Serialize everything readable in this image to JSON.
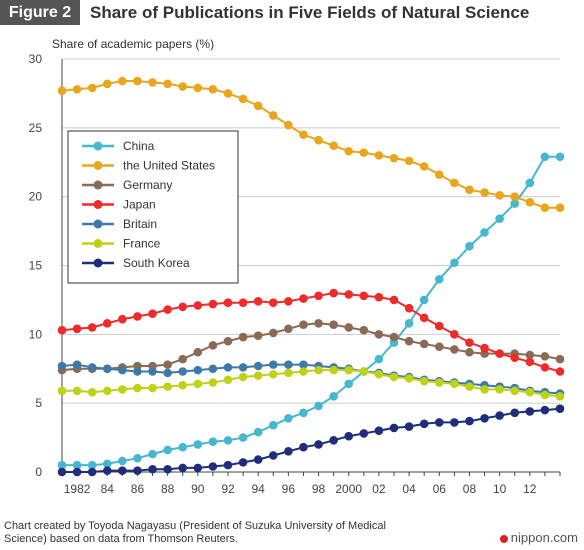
{
  "figure_label": "Figure 2",
  "chart_data": {
    "type": "line",
    "title": "Share of Publications in Five Fields of Natural Science",
    "ylabel": "Share of academic papers (%)",
    "xlabel": "",
    "xlim": [
      1981,
      2014
    ],
    "ylim": [
      0,
      30
    ],
    "y_ticks": [
      0,
      5,
      10,
      15,
      20,
      25,
      30
    ],
    "x_ticks": [
      {
        "x": 1982,
        "label": "1982"
      },
      {
        "x": 1984,
        "label": "84"
      },
      {
        "x": 1986,
        "label": "86"
      },
      {
        "x": 1988,
        "label": "88"
      },
      {
        "x": 1990,
        "label": "90"
      },
      {
        "x": 1992,
        "label": "92"
      },
      {
        "x": 1994,
        "label": "94"
      },
      {
        "x": 1996,
        "label": "96"
      },
      {
        "x": 1998,
        "label": "98"
      },
      {
        "x": 2000,
        "label": "2000"
      },
      {
        "x": 2002,
        "label": "02"
      },
      {
        "x": 2004,
        "label": "04"
      },
      {
        "x": 2006,
        "label": "06"
      },
      {
        "x": 2008,
        "label": "08"
      },
      {
        "x": 2010,
        "label": "10"
      },
      {
        "x": 2012,
        "label": "12"
      }
    ],
    "grid": "horizontal",
    "legend_position": "left",
    "x": [
      1981,
      1982,
      1983,
      1984,
      1985,
      1986,
      1987,
      1988,
      1989,
      1990,
      1991,
      1992,
      1993,
      1994,
      1995,
      1996,
      1997,
      1998,
      1999,
      2000,
      2001,
      2002,
      2003,
      2004,
      2005,
      2006,
      2007,
      2008,
      2009,
      2010,
      2011,
      2012,
      2013,
      2014
    ],
    "series": [
      {
        "name": "China",
        "color": "#46b7cf",
        "values": [
          0.5,
          0.5,
          0.5,
          0.6,
          0.8,
          1.0,
          1.3,
          1.6,
          1.8,
          2.0,
          2.2,
          2.3,
          2.5,
          2.9,
          3.4,
          3.9,
          4.3,
          4.8,
          5.5,
          6.4,
          7.3,
          8.2,
          9.4,
          10.8,
          12.5,
          14.0,
          15.2,
          16.4,
          17.4,
          18.4,
          19.5,
          21.0,
          22.9,
          22.9
        ]
      },
      {
        "name": "the United States",
        "color": "#e8a51d",
        "values": [
          27.7,
          27.8,
          27.9,
          28.2,
          28.4,
          28.4,
          28.3,
          28.2,
          28.0,
          27.9,
          27.8,
          27.5,
          27.1,
          26.6,
          25.9,
          25.2,
          24.5,
          24.1,
          23.7,
          23.3,
          23.2,
          23.0,
          22.8,
          22.6,
          22.2,
          21.6,
          21.0,
          20.5,
          20.3,
          20.1,
          20.0,
          19.6,
          19.2,
          19.2
        ]
      },
      {
        "name": "Germany",
        "color": "#8a6a55",
        "values": [
          7.4,
          7.5,
          7.5,
          7.5,
          7.6,
          7.7,
          7.7,
          7.8,
          8.2,
          8.7,
          9.2,
          9.5,
          9.8,
          9.9,
          10.1,
          10.4,
          10.7,
          10.8,
          10.7,
          10.5,
          10.3,
          10.0,
          9.8,
          9.5,
          9.3,
          9.1,
          8.9,
          8.7,
          8.6,
          8.6,
          8.6,
          8.5,
          8.4,
          8.2
        ]
      },
      {
        "name": "Japan",
        "color": "#ee2b2b",
        "values": [
          10.3,
          10.4,
          10.5,
          10.8,
          11.1,
          11.3,
          11.5,
          11.8,
          12.0,
          12.1,
          12.2,
          12.3,
          12.3,
          12.4,
          12.3,
          12.4,
          12.6,
          12.8,
          13.0,
          12.9,
          12.8,
          12.7,
          12.5,
          11.9,
          11.2,
          10.6,
          10.0,
          9.4,
          9.0,
          8.6,
          8.3,
          8.0,
          7.6,
          7.3
        ]
      },
      {
        "name": "Britain",
        "color": "#3e79a8",
        "values": [
          7.7,
          7.8,
          7.6,
          7.5,
          7.4,
          7.3,
          7.3,
          7.2,
          7.3,
          7.4,
          7.5,
          7.6,
          7.6,
          7.7,
          7.8,
          7.8,
          7.8,
          7.7,
          7.6,
          7.5,
          7.3,
          7.2,
          7.0,
          6.9,
          6.7,
          6.6,
          6.5,
          6.4,
          6.3,
          6.2,
          6.1,
          5.9,
          5.8,
          5.7
        ]
      },
      {
        "name": "France",
        "color": "#bfd218",
        "values": [
          5.9,
          5.9,
          5.8,
          5.9,
          6.0,
          6.1,
          6.1,
          6.2,
          6.3,
          6.4,
          6.5,
          6.7,
          6.9,
          7.0,
          7.1,
          7.2,
          7.3,
          7.4,
          7.4,
          7.4,
          7.3,
          7.1,
          6.9,
          6.8,
          6.6,
          6.5,
          6.4,
          6.2,
          6.0,
          6.0,
          5.9,
          5.8,
          5.6,
          5.5
        ]
      },
      {
        "name": "South Korea",
        "color": "#1f2d7a",
        "values": [
          0.0,
          0.0,
          0.0,
          0.1,
          0.1,
          0.1,
          0.2,
          0.2,
          0.3,
          0.3,
          0.4,
          0.5,
          0.7,
          0.9,
          1.2,
          1.5,
          1.8,
          2.0,
          2.3,
          2.6,
          2.8,
          3.0,
          3.2,
          3.3,
          3.5,
          3.6,
          3.6,
          3.7,
          3.9,
          4.1,
          4.3,
          4.4,
          4.5,
          4.6
        ]
      }
    ]
  },
  "footer": {
    "source": "Chart created by Toyoda Nagayasu (President of Suzuka University of Medical Science) based on data from Thomson Reuters.",
    "brand": "nippon.com"
  }
}
